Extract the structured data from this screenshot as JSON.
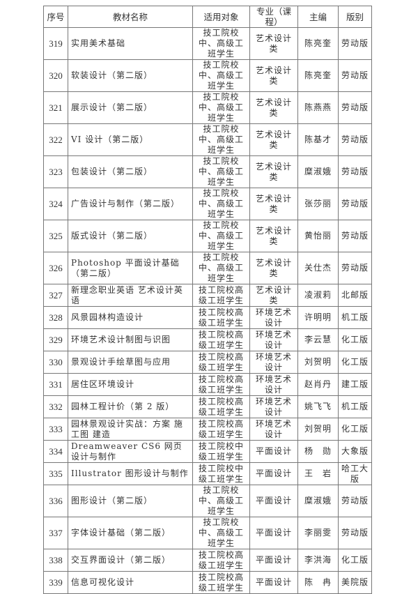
{
  "headers": [
    "序号",
    "教材名称",
    "适用对象",
    "专业（课程）",
    "主编",
    "版别"
  ],
  "rows": [
    {
      "no": "319",
      "title": "实用美术基础",
      "target": "技工院校中、高级工班学生",
      "major": "艺术设计类",
      "editor": "陈亮奎",
      "publisher": "劳动版"
    },
    {
      "no": "320",
      "title": "软装设计（第二版）",
      "target": "技工院校中、高级工班学生",
      "major": "艺术设计类",
      "editor": "陈亮奎",
      "publisher": "劳动版"
    },
    {
      "no": "321",
      "title": "展示设计（第二版）",
      "target": "技工院校中、高级工班学生",
      "major": "艺术设计类",
      "editor": "陈燕燕",
      "publisher": "劳动版"
    },
    {
      "no": "322",
      "title": "VI 设计（第二版）",
      "target": "技工院校中、高级工班学生",
      "major": "艺术设计类",
      "editor": "陈基才",
      "publisher": "劳动版"
    },
    {
      "no": "323",
      "title": "包装设计（第二版）",
      "target": "技工院校中、高级工班学生",
      "major": "艺术设计类",
      "editor": "糜淑娥",
      "publisher": "劳动版"
    },
    {
      "no": "324",
      "title": "广告设计与制作（第二版）",
      "target": "技工院校中、高级工班学生",
      "major": "艺术设计类",
      "editor": "张莎丽",
      "publisher": "劳动版"
    },
    {
      "no": "325",
      "title": "版式设计（第二版）",
      "target": "技工院校中、高级工班学生",
      "major": "艺术设计类",
      "editor": "黄怡丽",
      "publisher": "劳动版"
    },
    {
      "no": "326",
      "title": "Photoshop 平面设计基础（第二版）",
      "target": "技工院校中、高级工班学生",
      "major": "艺术设计类",
      "editor": "关仕杰",
      "publisher": "劳动版"
    },
    {
      "no": "327",
      "title": "新理念职业英语 艺术设计英语",
      "target": "技工院校高级工班学生",
      "major": "艺术设计类",
      "editor": "凌淑莉",
      "publisher": "北邮版"
    },
    {
      "no": "328",
      "title": "风景园林构造设计",
      "target": "技工院校高级工班学生",
      "major": "环境艺术设计",
      "editor": "许明明",
      "publisher": "机工版"
    },
    {
      "no": "329",
      "title": "环境艺术设计制图与识图",
      "target": "技工院校高级工班学生",
      "major": "环境艺术设计",
      "editor": "李云慧",
      "publisher": "化工版"
    },
    {
      "no": "330",
      "title": "景观设计手绘草图与应用",
      "target": "技工院校高级工班学生",
      "major": "环境艺术设计",
      "editor": "刘贺明",
      "publisher": "化工版"
    },
    {
      "no": "331",
      "title": "居住区环境设计",
      "target": "技工院校高级工班学生",
      "major": "环境艺术设计",
      "editor": "赵肖丹",
      "publisher": "建工版"
    },
    {
      "no": "332",
      "title": "园林工程计价（第 2 版）",
      "target": "技工院校高级工班学生",
      "major": "环境艺术设计",
      "editor": "姚飞飞",
      "publisher": "机工版"
    },
    {
      "no": "333",
      "title": "园林景观设计实战：方案 施工图 建造",
      "target": "技工院校高级工班学生",
      "major": "环境艺术设计",
      "editor": "刘贺明",
      "publisher": "化工版"
    },
    {
      "no": "334",
      "title": "Dreamweaver CS6 网页设计与制作",
      "target": "技工院校中级工班学生",
      "major": "平面设计",
      "editor": "杨　勋",
      "publisher": "大象版"
    },
    {
      "no": "335",
      "title": "Illustrator 图形设计与制作",
      "target": "技工院校中级工班学生",
      "major": "平面设计",
      "editor": "王　岩",
      "publisher": "哈工大版"
    },
    {
      "no": "336",
      "title": "图形设计（第二版）",
      "target": "技工院校中、高级工班学生",
      "major": "平面设计",
      "editor": "糜淑娥",
      "publisher": "劳动版"
    },
    {
      "no": "337",
      "title": "字体设计基础（第二版）",
      "target": "技工院校中、高级工班学生",
      "major": "平面设计",
      "editor": "李丽雯",
      "publisher": "劳动版"
    },
    {
      "no": "338",
      "title": "交互界面设计（第二版）",
      "target": "技工院校高级工班学生",
      "major": "平面设计",
      "editor": "李洪海",
      "publisher": "化工版"
    },
    {
      "no": "339",
      "title": "信息可视化设计",
      "target": "技工院校高级工班学生",
      "major": "平面设计",
      "editor": "陈　冉",
      "publisher": "美院版"
    }
  ]
}
